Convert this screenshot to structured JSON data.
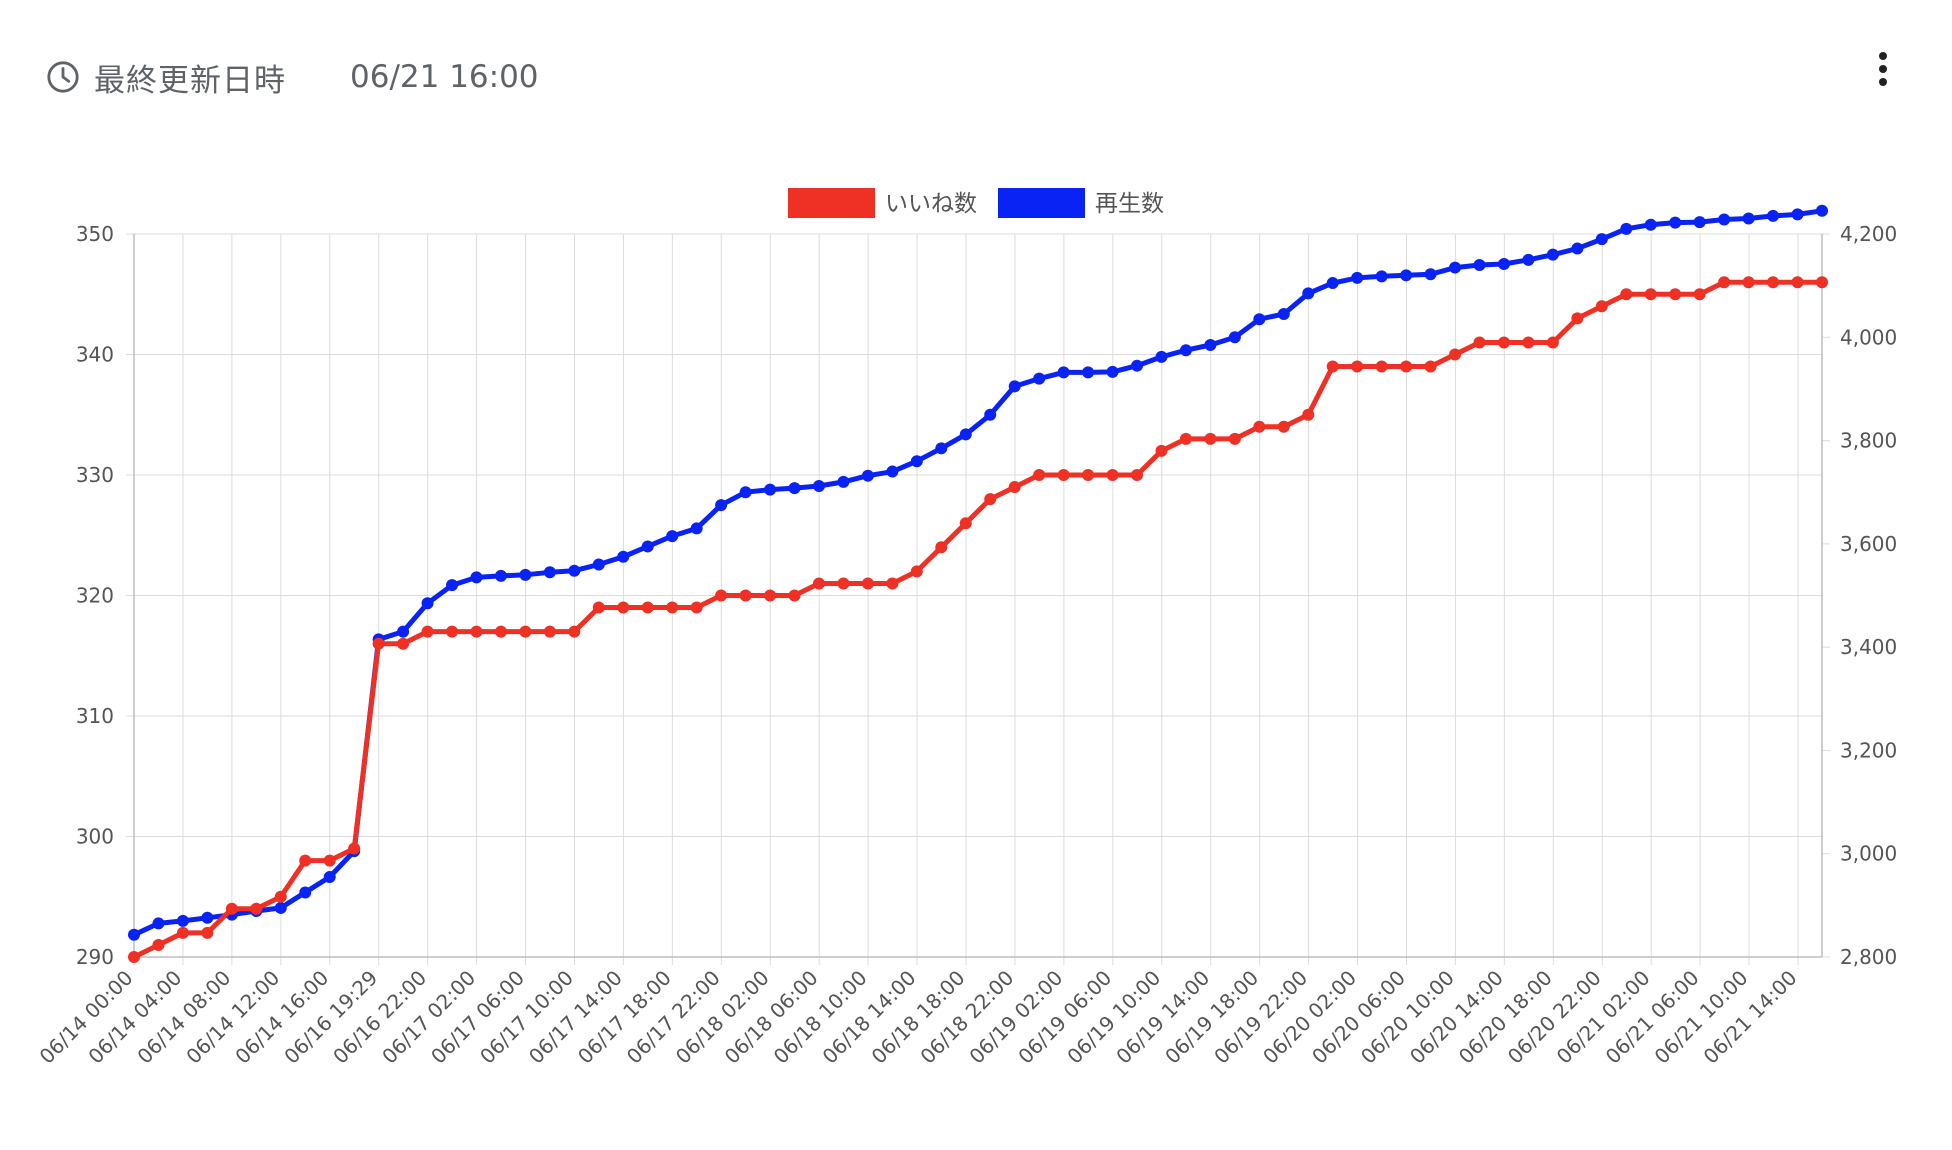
{
  "header": {
    "label": "最終更新日時",
    "value": "06/21 16:00",
    "clock_icon": "clock-icon",
    "menu_icon": "more-vert-icon"
  },
  "chart_data": {
    "type": "line",
    "series": [
      {
        "name": "いいね数",
        "color": "#ee3124",
        "axis": "left",
        "values": [
          290,
          291,
          292,
          292,
          294,
          294,
          295,
          298,
          298,
          299,
          316,
          316,
          317,
          317,
          317,
          317,
          317,
          317,
          317,
          319,
          319,
          319,
          319,
          319,
          320,
          320,
          320,
          320,
          321,
          321,
          321,
          321,
          322,
          324,
          326,
          328,
          329,
          330,
          330,
          330,
          330,
          330,
          332,
          333,
          333,
          333,
          334,
          334,
          335,
          339,
          339,
          339,
          339,
          339,
          340,
          341,
          341,
          341,
          341,
          343,
          344,
          345,
          345,
          345,
          345,
          346,
          346,
          346,
          346,
          346
        ]
      },
      {
        "name": "再生数",
        "color": "#0a23f5",
        "axis": "right",
        "values": [
          2843,
          2865,
          2870,
          2876,
          2882,
          2889,
          2895,
          2925,
          2955,
          3005,
          3415,
          3430,
          3485,
          3520,
          3535,
          3538,
          3540,
          3545,
          3548,
          3560,
          3575,
          3595,
          3615,
          3630,
          3675,
          3700,
          3705,
          3708,
          3712,
          3720,
          3732,
          3740,
          3760,
          3785,
          3812,
          3850,
          3905,
          3920,
          3932,
          3932,
          3933,
          3945,
          3962,
          3975,
          3985,
          4000,
          4035,
          4045,
          4085,
          4105,
          4115,
          4118,
          4120,
          4122,
          4135,
          4140,
          4142,
          4150,
          4160,
          4172,
          4190,
          4210,
          4218,
          4222,
          4223,
          4228,
          4230,
          4235,
          4238,
          4245
        ]
      }
    ],
    "x_labels": [
      "06/14 00:00",
      "06/14 04:00",
      "06/14 08:00",
      "06/14 12:00",
      "06/14 16:00",
      "06/16 19:29",
      "06/16 22:00",
      "06/17 02:00",
      "06/17 06:00",
      "06/17 10:00",
      "06/17 14:00",
      "06/17 18:00",
      "06/17 22:00",
      "06/18 02:00",
      "06/18 06:00",
      "06/18 10:00",
      "06/18 14:00",
      "06/18 18:00",
      "06/18 22:00",
      "06/19 02:00",
      "06/19 06:00",
      "06/19 10:00",
      "06/19 14:00",
      "06/19 18:00",
      "06/19 22:00",
      "06/20 02:00",
      "06/20 06:00",
      "06/20 10:00",
      "06/20 14:00",
      "06/20 18:00",
      "06/20 22:00",
      "06/21 02:00",
      "06/21 06:00",
      "06/21 10:00",
      "06/21 14:00"
    ],
    "y_left": {
      "min": 290,
      "max": 350,
      "ticks": [
        "290",
        "300",
        "310",
        "320",
        "330",
        "340",
        "350"
      ]
    },
    "y_right": {
      "min": 2800,
      "max": 4200,
      "ticks": [
        "2,800",
        "3,000",
        "3,200",
        "3,400",
        "3,600",
        "3,800",
        "4,000",
        "4,200"
      ]
    },
    "grid": true,
    "legend_position": "top"
  }
}
